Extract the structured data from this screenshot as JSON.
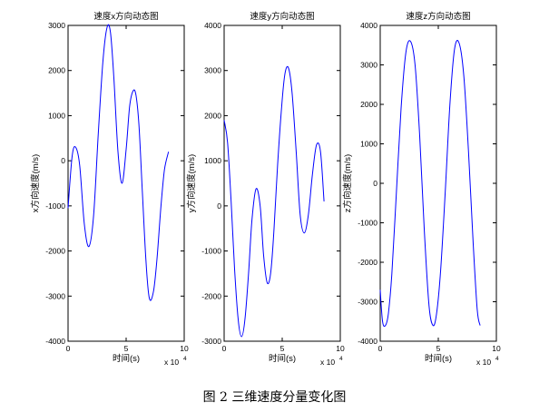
{
  "caption": "图 2  三维速度分量变化图",
  "style": {
    "line_color": "#0000ff",
    "axis_color": "#000000",
    "background": "#ffffff"
  },
  "chart_data": [
    {
      "type": "line",
      "title": "速度x方向动态图",
      "xlabel": "时间(s)",
      "ylabel": "x方向速度(m/s)",
      "xlim": [
        0,
        10
      ],
      "ylim": [
        -4000,
        3000
      ],
      "x_multiplier_label": "x 10",
      "x_multiplier_exp": "4",
      "x_ticks": [
        0,
        5,
        10
      ],
      "y_ticks": [
        -4000,
        -3000,
        -2000,
        -1000,
        0,
        1000,
        2000,
        3000
      ],
      "grid": false,
      "series": [
        {
          "x": [
            0,
            0.35,
            0.65,
            1.0,
            1.4,
            1.8,
            2.2,
            2.6,
            3.0,
            3.35,
            3.65,
            3.95,
            4.3,
            4.65,
            5.0,
            5.3,
            5.6,
            5.85,
            6.1,
            6.4,
            6.7,
            7.0,
            7.35,
            7.65,
            8.0,
            8.3,
            8.65
          ],
          "values": [
            -1050,
            100,
            300,
            -100,
            -1400,
            -1900,
            -1200,
            600,
            2200,
            2950,
            2850,
            1800,
            200,
            -500,
            250,
            1200,
            1550,
            1450,
            800,
            -700,
            -2200,
            -3050,
            -2900,
            -2200,
            -1000,
            -200,
            200
          ]
        }
      ]
    },
    {
      "type": "line",
      "title": "速度y方向动态图",
      "xlabel": "时间(s)",
      "ylabel": "y方向速度(m/s)",
      "xlim": [
        0,
        10
      ],
      "ylim": [
        -3000,
        4000
      ],
      "x_multiplier_label": "x 10",
      "x_multiplier_exp": "4",
      "x_ticks": [
        0,
        5,
        10
      ],
      "y_ticks": [
        -3000,
        -2000,
        -1000,
        0,
        1000,
        2000,
        3000,
        4000
      ],
      "grid": false,
      "series": [
        {
          "x": [
            0,
            0.3,
            0.6,
            0.9,
            1.2,
            1.5,
            1.8,
            2.1,
            2.4,
            2.75,
            3.1,
            3.4,
            3.7,
            4.0,
            4.3,
            4.6,
            4.95,
            5.25,
            5.55,
            5.85,
            6.2,
            6.55,
            6.9,
            7.25,
            7.6,
            7.95,
            8.3,
            8.6
          ],
          "values": [
            1900,
            1400,
            100,
            -1400,
            -2500,
            -2900,
            -2500,
            -1500,
            -300,
            380,
            0,
            -1100,
            -1700,
            -1500,
            -500,
            900,
            2200,
            2950,
            3050,
            2500,
            1200,
            -200,
            -600,
            -200,
            700,
            1350,
            1200,
            100
          ]
        }
      ]
    },
    {
      "type": "line",
      "title": "速度z方向动态图",
      "xlabel": "时间(s)",
      "ylabel": "z方向速度(m/s)",
      "xlim": [
        0,
        10
      ],
      "ylim": [
        -4000,
        4000
      ],
      "x_multiplier_label": "x 10",
      "x_multiplier_exp": "4",
      "x_ticks": [
        0,
        5,
        10
      ],
      "y_ticks": [
        -4000,
        -3000,
        -2000,
        -1000,
        0,
        1000,
        2000,
        3000,
        4000
      ],
      "grid": false,
      "series": [
        {
          "x": [
            0,
            0.2,
            0.45,
            0.7,
            1.0,
            1.4,
            1.8,
            2.2,
            2.6,
            3.0,
            3.4,
            3.8,
            4.2,
            4.55,
            4.85,
            5.2,
            5.6,
            6.0,
            6.4,
            6.8,
            7.2,
            7.6,
            8.0,
            8.35,
            8.6
          ],
          "values": [
            -2700,
            -3500,
            -3600,
            -3300,
            -2300,
            -200,
            1900,
            3300,
            3600,
            3000,
            1200,
            -1200,
            -3100,
            -3600,
            -3300,
            -2200,
            -200,
            2000,
            3400,
            3550,
            2700,
            800,
            -1500,
            -3200,
            -3600
          ]
        }
      ]
    }
  ]
}
